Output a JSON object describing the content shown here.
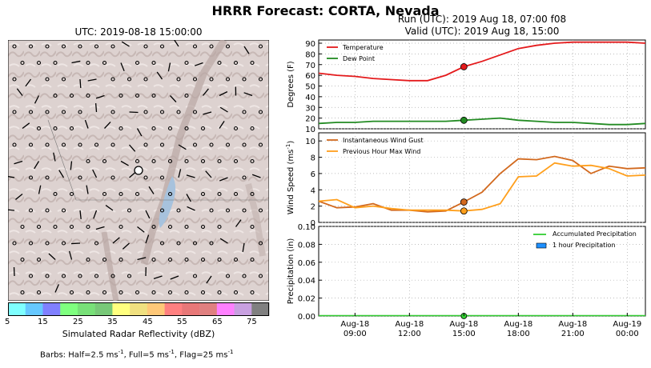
{
  "title": "HRRR Forecast: CORTA, Nevada",
  "map": {
    "valid_label": "UTC: 2019-08-18 15:00:00",
    "colorbar_label": "Simulated Radar Reflectivity (dBZ)",
    "colorbar_ticks": [
      "5",
      "15",
      "25",
      "35",
      "45",
      "55",
      "65",
      "75"
    ],
    "colorbar_colors": [
      "#7fffff",
      "#66c8ff",
      "#8080ff",
      "#7fff7f",
      "#78e078",
      "#78c878",
      "#ffff7f",
      "#f0e080",
      "#ffc878",
      "#ff8080",
      "#e87878",
      "#e08080",
      "#ff80ff",
      "#c8a0e0",
      "#808080"
    ],
    "barbs_note_prefix": "Barbs: Half=2.5 ms",
    "barbs_note_mid1": ", Full=5 ms",
    "barbs_note_mid2": ", Flag=25 ms",
    "barbs_exp": "-1"
  },
  "run_line1": "Run (UTC): 2019 Aug 18, 07:00 f08",
  "run_line2": "Valid (UTC): 2019 Aug 18, 15:00",
  "chart_data": [
    {
      "type": "line",
      "ylabel": "Degrees (F)",
      "ylim": [
        10,
        93
      ],
      "yticks": [
        10,
        20,
        30,
        40,
        50,
        60,
        70,
        80,
        90
      ],
      "x_hours": [
        7,
        8,
        9,
        10,
        11,
        12,
        13,
        14,
        15,
        16,
        17,
        18,
        19,
        20,
        21,
        22,
        23,
        24,
        25
      ],
      "series": [
        {
          "name": "Temperature",
          "color": "#e41a1c",
          "values": [
            62,
            60,
            59,
            57,
            56,
            55,
            55,
            60,
            68,
            73,
            79,
            85,
            88,
            90,
            91,
            91,
            91,
            91,
            90
          ]
        },
        {
          "name": "Dew Point",
          "color": "#228b22",
          "values": [
            15,
            16,
            16,
            17,
            17,
            17,
            17,
            17,
            18,
            19,
            20,
            18,
            17,
            16,
            16,
            15,
            14,
            14,
            15
          ]
        }
      ],
      "marker_hour": 15,
      "legend": "top-left"
    },
    {
      "type": "line",
      "ylabel": "Wind Speed (ms",
      "ylabel_exp": "-1",
      "ylabel_close": ")",
      "ylim": [
        0,
        11
      ],
      "yticks": [
        0,
        2,
        4,
        6,
        8,
        10
      ],
      "x_hours": [
        7,
        8,
        9,
        10,
        11,
        12,
        13,
        14,
        15,
        16,
        17,
        18,
        19,
        20,
        21,
        22,
        23,
        24,
        25
      ],
      "series": [
        {
          "name": "Instantaneous Wind Gust",
          "color": "#d2691e",
          "values": [
            2.6,
            1.8,
            1.9,
            2.3,
            1.5,
            1.5,
            1.3,
            1.4,
            2.5,
            3.7,
            6.0,
            7.8,
            7.7,
            8.1,
            7.6,
            6.0,
            6.9,
            6.6,
            6.7
          ]
        },
        {
          "name": "Previous Hour Max Wind",
          "color": "#ff9f1c",
          "values": [
            2.6,
            2.8,
            1.8,
            2.0,
            1.7,
            1.5,
            1.5,
            1.5,
            1.4,
            1.6,
            2.3,
            5.6,
            5.7,
            7.3,
            6.9,
            7.0,
            6.6,
            5.7,
            5.8
          ]
        }
      ],
      "marker_hour": 15,
      "legend": "top-left"
    },
    {
      "type": "area",
      "ylabel": "Precipitation (in)",
      "ylim": [
        0,
        0.1
      ],
      "yticks": [
        "0.00",
        "0.02",
        "0.04",
        "0.06",
        "0.08",
        "0.10"
      ],
      "series": [
        {
          "name": "Accumulated Precipitation",
          "color": "#32cd32",
          "values": [
            0,
            0,
            0,
            0,
            0,
            0,
            0,
            0,
            0,
            0,
            0,
            0,
            0,
            0,
            0,
            0,
            0,
            0,
            0
          ]
        },
        {
          "name": "1 hour Precipitation",
          "color": "#1e90ff",
          "values": [
            0,
            0,
            0,
            0,
            0,
            0,
            0,
            0,
            0,
            0,
            0,
            0,
            0,
            0,
            0,
            0,
            0,
            0,
            0
          ]
        }
      ],
      "marker_hour": 15,
      "legend": "top-right"
    }
  ],
  "x_axis": {
    "tick_hours": [
      9,
      12,
      15,
      18,
      21,
      24
    ],
    "tick_labels_line1": [
      "Aug-18",
      "Aug-18",
      "Aug-18",
      "Aug-18",
      "Aug-18",
      "Aug-19"
    ],
    "tick_labels_line2": [
      "09:00",
      "12:00",
      "15:00",
      "18:00",
      "21:00",
      "00:00"
    ],
    "range_hours": [
      7,
      25
    ]
  }
}
